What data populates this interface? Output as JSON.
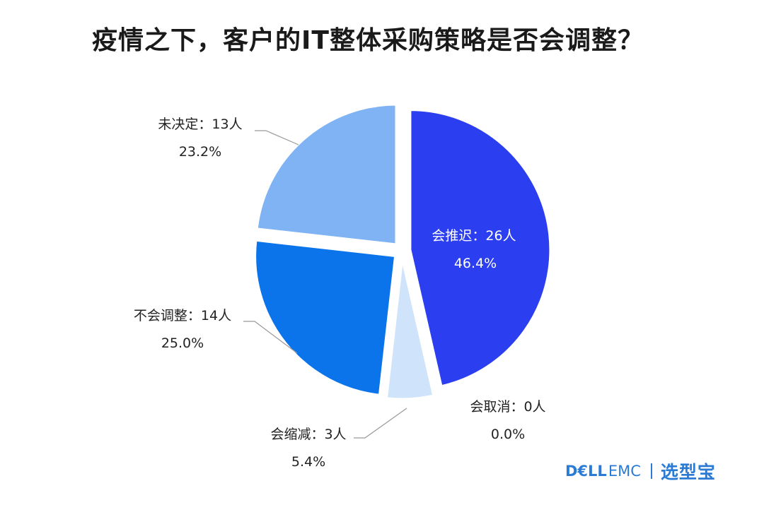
{
  "title": "疫情之下，客户的IT整体采购策略是否会调整？",
  "chart_data": {
    "type": "pie",
    "title": "疫情之下，客户的IT整体采购策略是否会调整？",
    "slices": [
      {
        "label": "会推迟：26人",
        "value": 26,
        "percent": "46.4%",
        "color": "#2b3ef0"
      },
      {
        "label": "会取消：0人",
        "value": 0,
        "percent": "0.0%",
        "color": "#6a8ff0"
      },
      {
        "label": "会缩减：3人",
        "value": 3,
        "percent": "5.4%",
        "color": "#cfe3fb"
      },
      {
        "label": "不会调整：14人",
        "value": 14,
        "percent": "25.0%",
        "color": "#0c74ea"
      },
      {
        "label": "未决定：13人",
        "value": 13,
        "percent": "23.2%",
        "color": "#7fb3f3"
      }
    ]
  },
  "brand": {
    "dell": "D€LL",
    "emc": "EMC",
    "xuanxingbao": "选型宝"
  }
}
